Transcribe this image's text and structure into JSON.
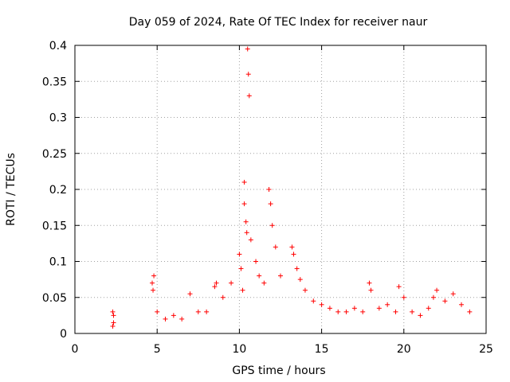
{
  "chart_data": {
    "type": "scatter",
    "title": "Day 059 of 2024, Rate Of TEC Index for receiver naur",
    "xlabel": "GPS time / hours",
    "ylabel": "ROTI / TECUs",
    "xlim": [
      0,
      25
    ],
    "ylim": [
      0,
      0.4
    ],
    "x_ticks": [
      0,
      5,
      10,
      15,
      20,
      25
    ],
    "x_tick_labels": [
      "0",
      "5",
      "10",
      "15",
      "20",
      "25"
    ],
    "y_ticks": [
      0,
      0.05,
      0.1,
      0.15,
      0.2,
      0.25,
      0.3,
      0.35,
      0.4
    ],
    "y_tick_labels": [
      "0",
      "0.05",
      "0.1",
      "0.15",
      "0.2",
      "0.25",
      "0.3",
      "0.35",
      "0.4"
    ],
    "grid": true,
    "marker": "plus",
    "marker_color": "#ff0000",
    "x": [
      2.3,
      2.3,
      2.35,
      2.35,
      4.7,
      4.75,
      4.8,
      5.0,
      5.5,
      6.0,
      6.5,
      7.0,
      7.5,
      8.0,
      8.5,
      8.6,
      9.0,
      9.5,
      10.0,
      10.1,
      10.2,
      10.3,
      10.3,
      10.4,
      10.45,
      10.5,
      10.55,
      10.6,
      10.7,
      11.0,
      11.2,
      11.5,
      11.8,
      11.9,
      12.0,
      12.2,
      12.5,
      13.2,
      13.3,
      13.5,
      13.7,
      14.0,
      14.5,
      15.0,
      15.5,
      16.0,
      16.5,
      17.0,
      17.5,
      17.9,
      18.0,
      18.5,
      19.0,
      19.5,
      19.7,
      20.0,
      20.5,
      21.0,
      21.5,
      21.8,
      22.0,
      22.5,
      23.0,
      23.5,
      24.0
    ],
    "y": [
      0.01,
      0.03,
      0.015,
      0.025,
      0.07,
      0.06,
      0.08,
      0.03,
      0.02,
      0.025,
      0.02,
      0.055,
      0.03,
      0.03,
      0.065,
      0.07,
      0.05,
      0.07,
      0.11,
      0.09,
      0.06,
      0.21,
      0.18,
      0.155,
      0.14,
      0.395,
      0.36,
      0.33,
      0.13,
      0.1,
      0.08,
      0.07,
      0.2,
      0.18,
      0.15,
      0.12,
      0.08,
      0.12,
      0.11,
      0.09,
      0.075,
      0.06,
      0.045,
      0.04,
      0.035,
      0.03,
      0.03,
      0.035,
      0.03,
      0.07,
      0.06,
      0.035,
      0.04,
      0.03,
      0.065,
      0.05,
      0.03,
      0.025,
      0.035,
      0.05,
      0.06,
      0.045,
      0.055,
      0.04,
      0.03
    ]
  }
}
